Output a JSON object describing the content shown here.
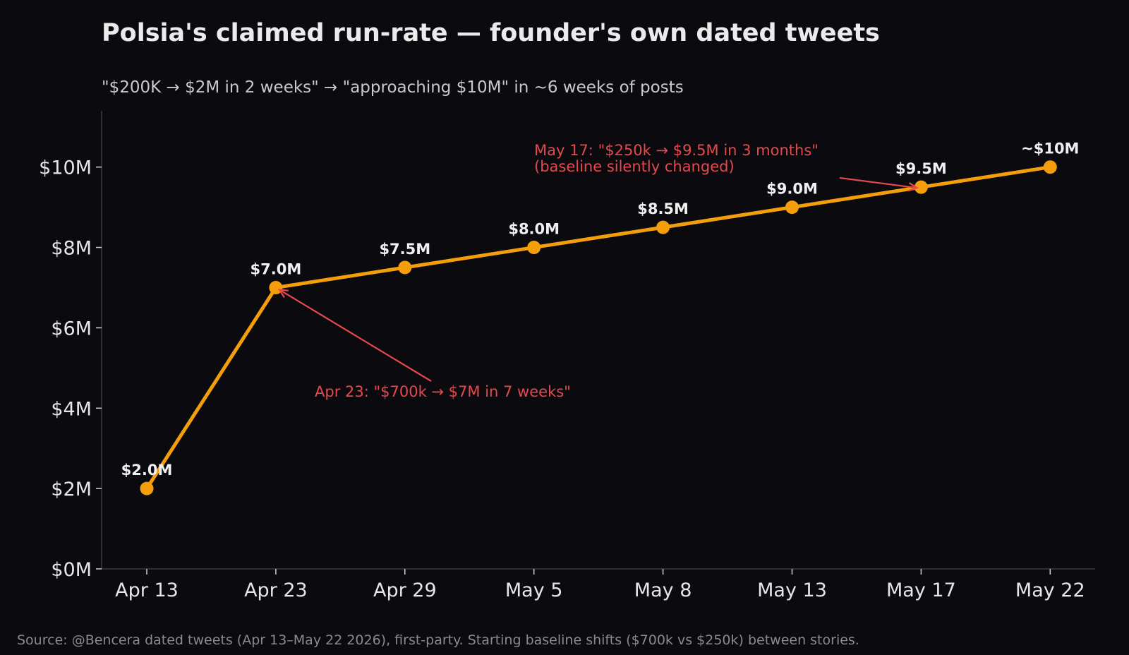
{
  "chart_data": {
    "type": "line",
    "title": "Polsia's claimed run-rate — founder's own dated tweets",
    "subtitle": "\"$200K → $2M in 2 weeks\" → \"approaching $10M\" in ~6 weeks of posts",
    "xlabel": "",
    "ylabel": "",
    "categories": [
      "Apr 13",
      "Apr 23",
      "Apr 29",
      "May 5",
      "May 8",
      "May 13",
      "May 17",
      "May 22"
    ],
    "values": [
      2.0,
      7.0,
      7.5,
      8.0,
      8.5,
      9.0,
      9.5,
      10.0
    ],
    "value_unit": "$M",
    "data_labels": [
      "$2.0M",
      "$7.0M",
      "$7.5M",
      "$8.0M",
      "$8.5M",
      "$9.0M",
      "$9.5M",
      "~$10M"
    ],
    "ylim": [
      0,
      11.4
    ],
    "yticks": [
      0,
      2,
      4,
      6,
      8,
      10
    ],
    "ytick_labels": [
      "$0M",
      "$2M",
      "$4M",
      "$6M",
      "$8M",
      "$10M"
    ],
    "grid": false,
    "line_color": "#f59e0b",
    "annotation_color": "#e5484d",
    "annotations": [
      {
        "point_index": 1,
        "lines": [
          "Apr 23: \"$700k → $7M in 7 weeks\""
        ]
      },
      {
        "point_index": 6,
        "lines": [
          "May 17: \"$250k → $9.5M in 3 months\"",
          "(baseline silently changed)"
        ]
      }
    ],
    "source_note": "Source: @Bencera dated tweets (Apr 13–May 22 2026), first-party. Starting baseline shifts ($700k vs $250k) between stories."
  }
}
